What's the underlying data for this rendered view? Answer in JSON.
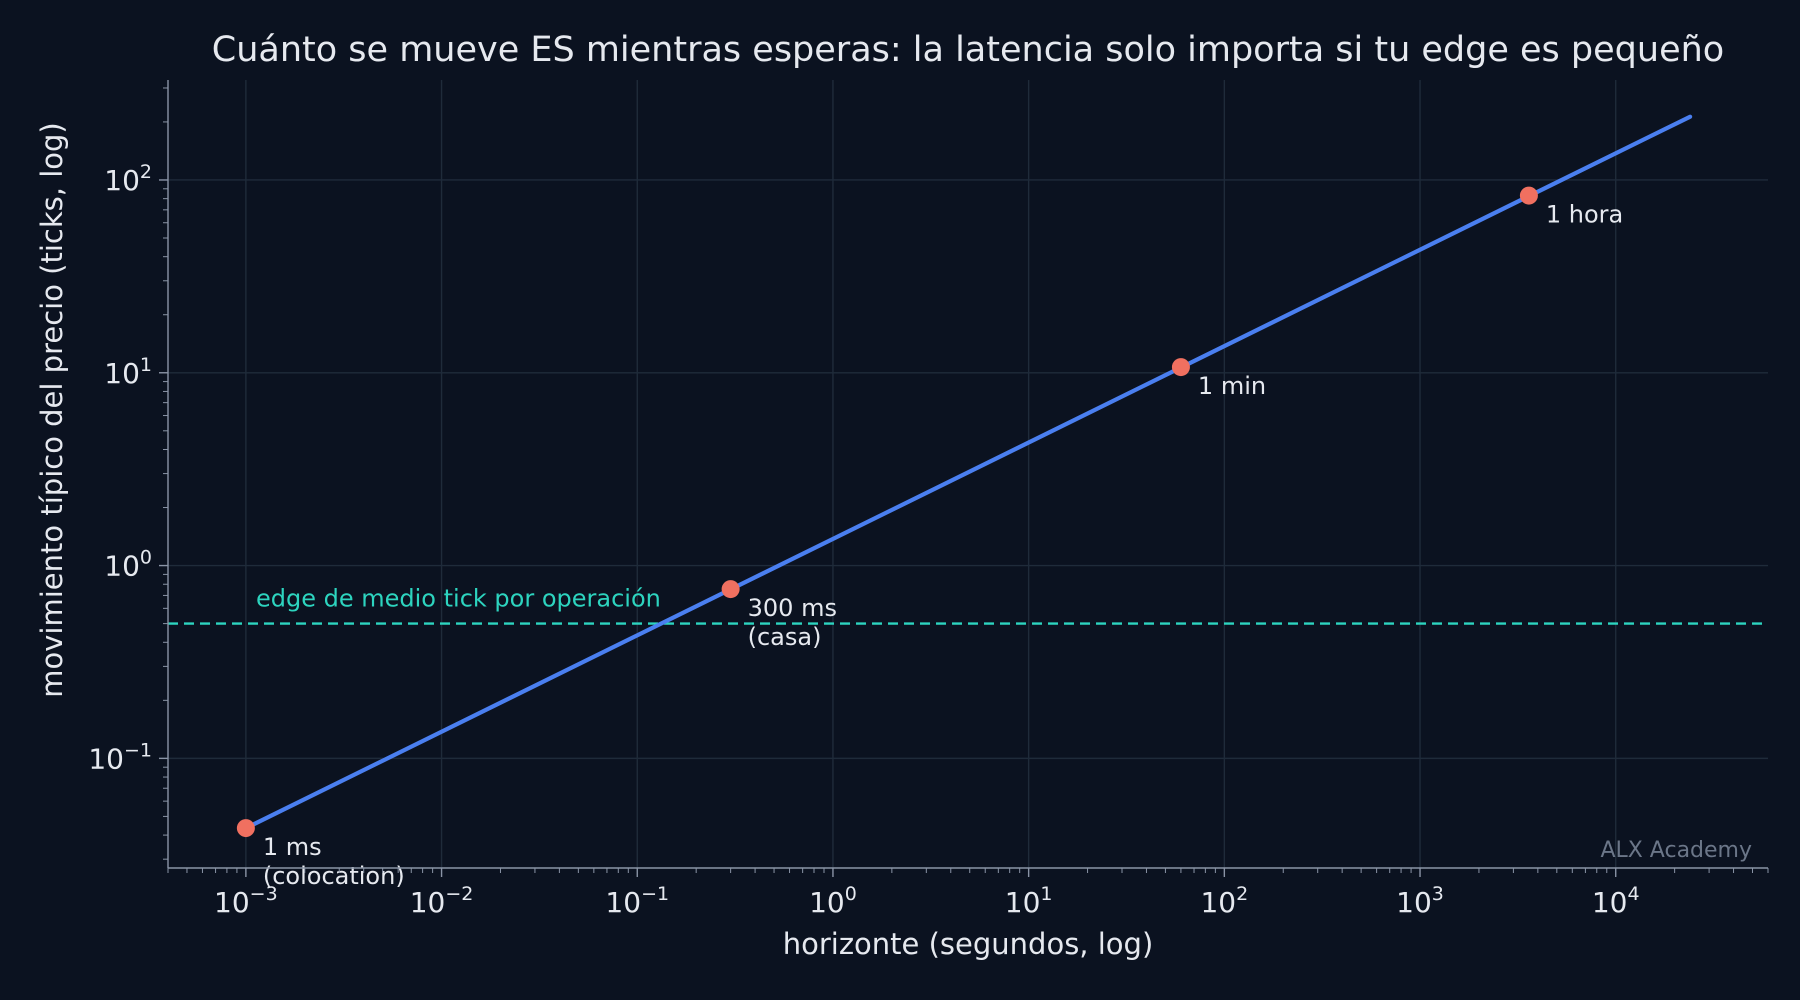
{
  "chart_data": {
    "type": "line",
    "title": "Cuánto se mueve ES mientras esperas: la latencia solo importa si tu edge es pequeño",
    "xlabel": "horizonte (segundos, log)",
    "ylabel": "movimiento típico del precio (ticks, log)",
    "xscale": "log",
    "yscale": "log",
    "xlim": [
      0.0004,
      60000
    ],
    "ylim": [
      0.027,
      330
    ],
    "xticks": [
      0.001,
      0.01,
      0.1,
      1,
      10,
      100,
      1000,
      10000
    ],
    "xtick_labels": [
      {
        "base": "10",
        "exp": "−3"
      },
      {
        "base": "10",
        "exp": "−2"
      },
      {
        "base": "10",
        "exp": "−1"
      },
      {
        "base": "10",
        "exp": "0"
      },
      {
        "base": "10",
        "exp": "1"
      },
      {
        "base": "10",
        "exp": "2"
      },
      {
        "base": "10",
        "exp": "3"
      },
      {
        "base": "10",
        "exp": "4"
      }
    ],
    "yticks": [
      0.1,
      1,
      10,
      100
    ],
    "ytick_labels": [
      {
        "base": "10",
        "exp": "−1"
      },
      {
        "base": "10",
        "exp": "0"
      },
      {
        "base": "10",
        "exp": "1"
      },
      {
        "base": "10",
        "exp": "2"
      }
    ],
    "grid": true,
    "series": [
      {
        "color": "#4a7ff0",
        "x": [
          0.001,
          24000
        ],
        "y": [
          0.0435,
          213
        ]
      }
    ],
    "points": [
      {
        "x": 0.001,
        "y": 0.0435,
        "label_lines": [
          "1 ms",
          "(colocation)"
        ]
      },
      {
        "x": 0.3,
        "y": 0.755,
        "label_lines": [
          "300 ms",
          "(casa)"
        ]
      },
      {
        "x": 60,
        "y": 10.7,
        "label_lines": [
          "1 min"
        ]
      },
      {
        "x": 3600,
        "y": 83,
        "label_lines": [
          "1 hora"
        ]
      }
    ],
    "point_color": "#f07060",
    "reference_line": {
      "y": 0.5,
      "label": "edge de medio tick por operación",
      "color": "#2dd4bf"
    },
    "watermark": "ALX Academy"
  }
}
